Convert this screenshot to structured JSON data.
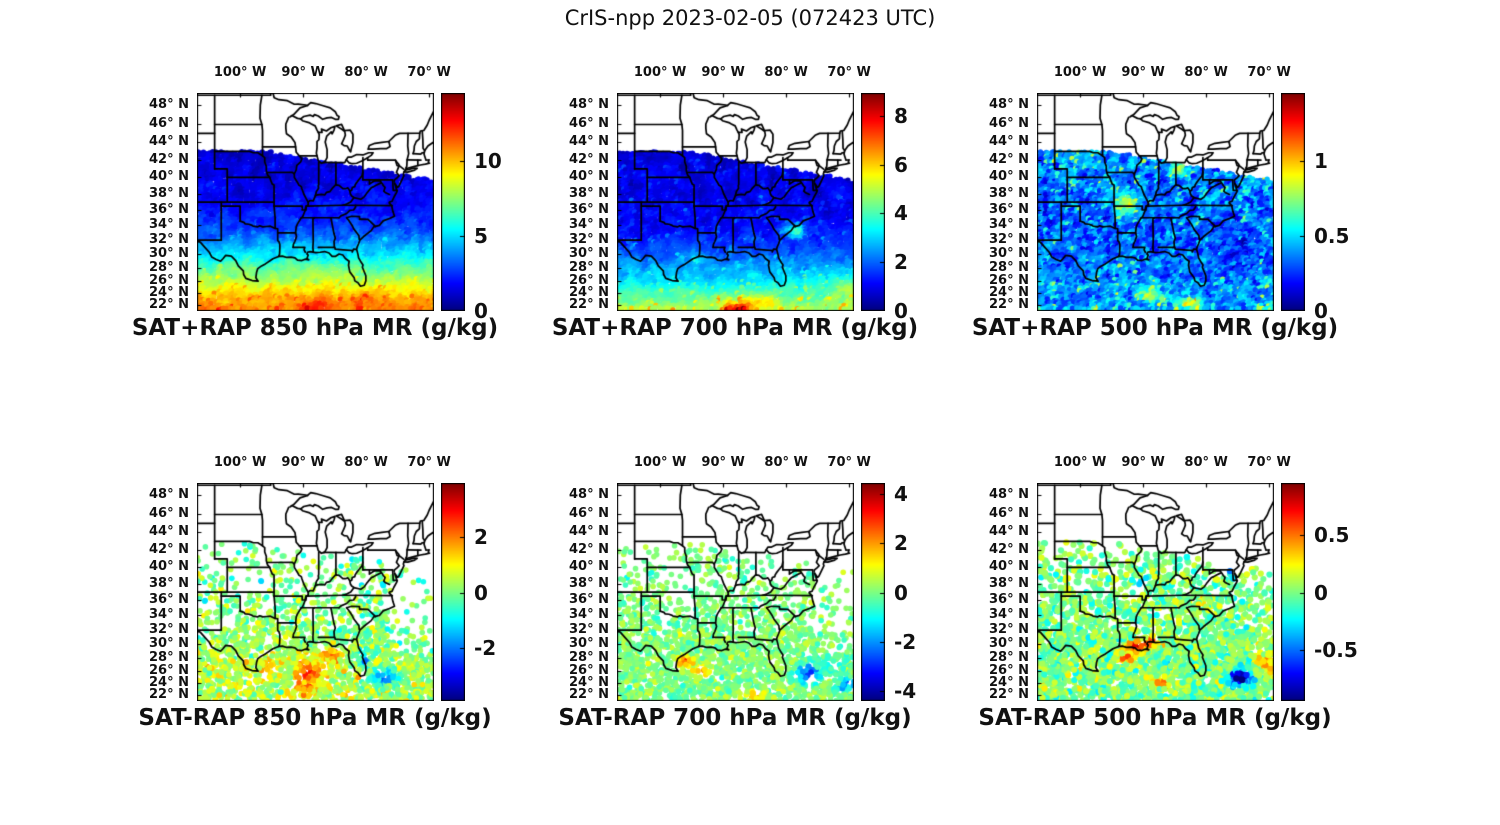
{
  "figure": {
    "title": "CrIS-npp 2023-02-05 (072423 UTC)"
  },
  "chart_data": {
    "type": "heatmap",
    "subtype": "multi-panel satellite retrieval maps with jet colorbars",
    "colormap": "jet",
    "region": {
      "lon_range": [
        -106.9,
        -69.2
      ],
      "lat_range": [
        20.9,
        49.3
      ]
    },
    "grid": "off",
    "axes": {
      "lon_tick_values": [
        -100,
        -90,
        -80,
        -70
      ],
      "lon_tick_labels": [
        "100° W",
        "90° W",
        "80° W",
        "70° W"
      ],
      "lat_tick_values": [
        48,
        46,
        44,
        42,
        40,
        38,
        36,
        34,
        32,
        30,
        28,
        26,
        24,
        22
      ],
      "lat_tick_labels": [
        "48° N",
        "46° N",
        "44° N",
        "42° N",
        "40° N",
        "38° N",
        "36° N",
        "34° N",
        "32° N",
        "30° N",
        "28° N",
        "26° N",
        "24° N",
        "22° N"
      ]
    },
    "swath_polygon": [
      [
        -96.2,
        43.0
      ],
      [
        -69.0,
        39.6
      ],
      [
        -67.5,
        20.0
      ],
      [
        -99.6,
        20.5
      ]
    ],
    "panels": [
      {
        "title": "SAT+RAP 850 hPa MR (g/kg)",
        "colorbar": {
          "vmin": 0,
          "vmax": 14.5,
          "tick_values": [
            0,
            5,
            10
          ],
          "tick_labels": [
            "0",
            "5",
            "10"
          ],
          "position": "right"
        },
        "field": {
          "kind": "swath",
          "seed": 3,
          "profile": [
            [
              50,
              1.1
            ],
            [
              44,
              1.1
            ],
            [
              40,
              1.4
            ],
            [
              37,
              1.8
            ],
            [
              34,
              2.6
            ],
            [
              32,
              3.6
            ],
            [
              30,
              5.0
            ],
            [
              28,
              6.6
            ],
            [
              26,
              8.0
            ],
            [
              24,
              9.4
            ],
            [
              22,
              10.4
            ],
            [
              20,
              11.0
            ]
          ],
          "noise_amp": 1.1,
          "noise_scale": 0.9,
          "speckle": 2.0,
          "hotspots": [
            [
              -88,
              21.5,
              3,
              1.5,
              2.0
            ],
            [
              -80.5,
              22.5,
              3,
              1.5,
              1.2
            ],
            [
              -95,
              23.5,
              2.5,
              1.2,
              0.8
            ]
          ]
        }
      },
      {
        "title": "SAT+RAP 700 hPa MR (g/kg)",
        "colorbar": {
          "vmin": 0,
          "vmax": 8.9,
          "tick_values": [
            0,
            2,
            4,
            6,
            8
          ],
          "tick_labels": [
            "0",
            "2",
            "4",
            "6",
            "8"
          ],
          "position": "right"
        },
        "field": {
          "kind": "swath",
          "seed": 5,
          "profile": [
            [
              50,
              0.7
            ],
            [
              42,
              0.8
            ],
            [
              38,
              0.9
            ],
            [
              34,
              1.1
            ],
            [
              32,
              1.4
            ],
            [
              30,
              1.9
            ],
            [
              28,
              2.5
            ],
            [
              26,
              3.1
            ],
            [
              24,
              3.9
            ],
            [
              22,
              4.6
            ],
            [
              20,
              5.2
            ]
          ],
          "noise_amp": 0.7,
          "noise_scale": 0.9,
          "speckle": 2.2,
          "hotspots": [
            [
              -87.5,
              21.3,
              2.2,
              1.2,
              3.2
            ],
            [
              -78.5,
              33.2,
              1.6,
              1.0,
              2.6
            ],
            [
              -84,
              22.5,
              2.5,
              1.2,
              1.6
            ],
            [
              -93.5,
              29.3,
              1.5,
              0.8,
              1.0
            ],
            [
              -70,
              25,
              3,
              2,
              1.0
            ]
          ]
        }
      },
      {
        "title": "SAT+RAP 500 hPa MR (g/kg)",
        "colorbar": {
          "vmin": 0,
          "vmax": 1.45,
          "tick_values": [
            0,
            0.5,
            1
          ],
          "tick_labels": [
            "0",
            "0.5",
            "1"
          ],
          "position": "right"
        },
        "field": {
          "kind": "swath",
          "seed": 7,
          "profile": [
            [
              50,
              0.32
            ],
            [
              44,
              0.38
            ],
            [
              40,
              0.34
            ],
            [
              36,
              0.3
            ],
            [
              32,
              0.3
            ],
            [
              28,
              0.33
            ],
            [
              24,
              0.38
            ],
            [
              20,
              0.42
            ]
          ],
          "noise_amp": 0.28,
          "noise_scale": 1.5,
          "speckle": 0.55,
          "hotspots": [
            [
              -92.5,
              36.3,
              1.8,
              1.5,
              0.55
            ],
            [
              -84.2,
              40.6,
              1.5,
              1.0,
              0.4
            ],
            [
              -70.8,
              41.0,
              2.0,
              1.5,
              0.35
            ],
            [
              -89,
              23.5,
              2.0,
              1.2,
              0.45
            ],
            [
              -82.5,
              22.0,
              2.0,
              1.0,
              0.5
            ],
            [
              -75.5,
              29.5,
              2.5,
              2.5,
              -0.12
            ]
          ]
        }
      },
      {
        "title": "SAT-RAP 850 hPa MR (g/kg)",
        "colorbar": {
          "vmin": -3.9,
          "vmax": 3.9,
          "tick_values": [
            -2,
            0,
            2
          ],
          "tick_labels": [
            "-2",
            "0",
            "2"
          ],
          "position": "right"
        },
        "field": {
          "kind": "scatter",
          "seed": 11,
          "n": 5000,
          "radius": 2.8,
          "east_mask": 0.3,
          "density": [
            [
              44,
              0.1
            ],
            [
              40,
              0.18
            ],
            [
              37,
              0.28
            ],
            [
              34,
              0.4
            ],
            [
              32,
              0.55
            ],
            [
              30.5,
              0.85
            ],
            [
              29,
              1
            ],
            [
              20,
              1
            ]
          ],
          "profile": [
            [
              50,
              -0.1
            ],
            [
              36,
              0.0
            ],
            [
              30,
              0.2
            ],
            [
              25,
              0.4
            ],
            [
              20,
              0.4
            ]
          ],
          "noise_amp": 1.0,
          "noise_scale": 1.5,
          "speckle": 0.9,
          "hotspots": [
            [
              -89,
              26,
              2.5,
              2,
              2.2
            ],
            [
              -85,
              28.5,
              1.5,
              1,
              1.6
            ],
            [
              -77,
              25,
              2,
              1.5,
              -2.6
            ],
            [
              -80.5,
              27.5,
              1.2,
              1,
              -1.6
            ],
            [
              -95.5,
              26.5,
              1.5,
              1.2,
              1.2
            ],
            [
              -90,
              23,
              2,
              1,
              1.5
            ]
          ]
        }
      },
      {
        "title": "SAT-RAP 700 hPa MR (g/kg)",
        "colorbar": {
          "vmin": -4.4,
          "vmax": 4.4,
          "tick_values": [
            -4,
            -2,
            0,
            2,
            4
          ],
          "tick_labels": [
            "-4",
            "-2",
            "0",
            "2",
            "4"
          ],
          "position": "right"
        },
        "field": {
          "kind": "scatter",
          "seed": 13,
          "n": 5200,
          "radius": 2.8,
          "east_mask": 0.5,
          "density": [
            [
              44,
              0.12
            ],
            [
              40,
              0.2
            ],
            [
              37,
              0.3
            ],
            [
              34,
              0.45
            ],
            [
              32,
              0.6
            ],
            [
              30.5,
              0.9
            ],
            [
              20,
              1
            ]
          ],
          "profile": [
            [
              50,
              0.0
            ],
            [
              20,
              0.0
            ]
          ],
          "noise_amp": 0.55,
          "noise_scale": 1.4,
          "speckle": 0.8,
          "hotspots": [
            [
              -96,
              27.5,
              1.2,
              0.8,
              2.8
            ],
            [
              -93.5,
              26,
              1.5,
              1,
              1.8
            ],
            [
              -76.5,
              25.5,
              1.8,
              1.5,
              -2.8
            ],
            [
              -70.5,
              24,
              1.5,
              1.2,
              -2.0
            ],
            [
              -85,
              22,
              2,
              1,
              1.2
            ],
            [
              -73,
              27,
              1.5,
              1.2,
              -1.2
            ]
          ]
        }
      },
      {
        "title": "SAT-RAP 500 hPa MR (g/kg)",
        "colorbar": {
          "vmin": -0.95,
          "vmax": 0.95,
          "tick_values": [
            -0.5,
            0,
            0.5
          ],
          "tick_labels": [
            "-0.5",
            "0",
            "0.5"
          ],
          "position": "right"
        },
        "field": {
          "kind": "scatter",
          "seed": 17,
          "n": 6000,
          "radius": 3.1,
          "east_mask": 0.75,
          "density": [
            [
              44,
              0.15
            ],
            [
              40,
              0.28
            ],
            [
              37,
              0.4
            ],
            [
              34,
              0.55
            ],
            [
              32,
              0.7
            ],
            [
              30.5,
              0.95
            ],
            [
              20,
              1
            ]
          ],
          "profile": [
            [
              50,
              0.0
            ],
            [
              20,
              0.0
            ]
          ],
          "noise_amp": 0.18,
          "noise_scale": 1.6,
          "speckle": 0.25,
          "hotspots": [
            [
              -91,
              29.7,
              1.5,
              0.8,
              0.85
            ],
            [
              -88.5,
              30.3,
              1.2,
              0.6,
              0.7
            ],
            [
              -93,
              28,
              1.2,
              0.8,
              0.5
            ],
            [
              -74.5,
              25,
              1.8,
              1.3,
              -0.9
            ],
            [
              -70.5,
              27,
              1.5,
              1.5,
              0.45
            ],
            [
              -84,
              42,
              1.5,
              1,
              -0.45
            ],
            [
              -76.5,
              40,
              1.2,
              0.8,
              -0.4
            ],
            [
              -90.5,
              38,
              1,
              0.8,
              -0.35
            ],
            [
              -87,
              24,
              2,
              1,
              0.4
            ]
          ]
        }
      }
    ]
  }
}
